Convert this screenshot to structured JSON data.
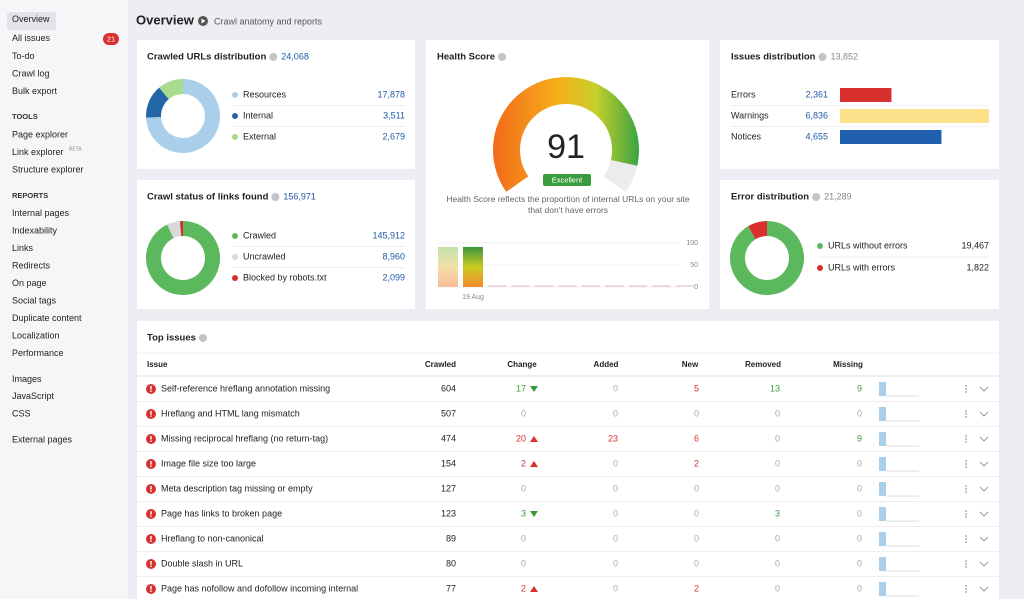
{
  "sidebar": {
    "nav": [
      "Overview",
      "All issues",
      "To-do",
      "Crawl log",
      "Bulk export"
    ],
    "all_issues_count": 21,
    "tools_heading": "TOOLS",
    "tools": [
      "Page explorer",
      "Link explorer",
      "Structure explorer"
    ],
    "beta": "BETA",
    "reports_heading": "REPORTS",
    "reports": [
      "Internal pages",
      "Indexability",
      "Links",
      "Redirects",
      "On page",
      "Social tags",
      "Duplicate content",
      "Localization",
      "Performance"
    ],
    "resources": [
      "Images",
      "JavaScript",
      "CSS"
    ],
    "external": [
      "External pages"
    ]
  },
  "header": {
    "title": "Overview",
    "subtitle": "Crawl anatomy and reports"
  },
  "crawled_urls": {
    "title": "Crawled URLs distribution",
    "total": {
      "value": 24068,
      "label": "24,068"
    },
    "items": [
      {
        "name": "Resources",
        "color": "#a9cfea",
        "value": 17878,
        "label": "17,878"
      },
      {
        "name": "Internal",
        "color": "#2366a8",
        "value": 3511,
        "label": "3,511"
      },
      {
        "name": "External",
        "color": "#a8dc8c",
        "value": 2679,
        "label": "2,679"
      }
    ]
  },
  "crawl_status": {
    "title": "Crawl status of links found",
    "total": {
      "value": 156971,
      "label": "156,971"
    },
    "items": [
      {
        "name": "Crawled",
        "color": "#5cb85c",
        "value": 145912,
        "label": "145,912"
      },
      {
        "name": "Uncrawled",
        "color": "#d9d9dc",
        "value": 8960,
        "label": "8,960"
      },
      {
        "name": "Blocked by robots.txt",
        "color": "#d8302f",
        "value": 2099,
        "label": "2,099"
      }
    ]
  },
  "health": {
    "title": "Health Score",
    "score": 91,
    "rating": "Excellent",
    "description": "Health Score reflects the proportion of internal URLs on your site that don't have errors",
    "history": {
      "ylim": [
        0,
        100
      ],
      "yticks": [
        100,
        50,
        0
      ],
      "dates": [
        null,
        "19 Aug"
      ],
      "values": [
        91,
        91
      ]
    }
  },
  "issues_distribution": {
    "title": "Issues distribution",
    "total": {
      "value": 13852,
      "label": "13,852"
    },
    "items": [
      {
        "name": "Errors",
        "color": "#d8302f",
        "value": 2361,
        "label": "2,361"
      },
      {
        "name": "Warnings",
        "color": "#fde08a",
        "value": 6836,
        "label": "6,836"
      },
      {
        "name": "Notices",
        "color": "#1f5fae",
        "value": 4655,
        "label": "4,655"
      }
    ]
  },
  "error_distribution": {
    "title": "Error distribution",
    "total": {
      "value": 21289,
      "label": "21,289"
    },
    "items": [
      {
        "name": "URLs without errors",
        "color": "#5cb85c",
        "value": 19467,
        "label": "19,467"
      },
      {
        "name": "URLs with errors",
        "color": "#d8302f",
        "value": 1822,
        "label": "1,822"
      }
    ]
  },
  "top_issues": {
    "title": "Top issues",
    "columns": [
      "Issue",
      "Crawled",
      "Change",
      "Added",
      "New",
      "Removed",
      "Missing"
    ],
    "rows": [
      {
        "issue": "Self-reference hreflang annotation missing",
        "crawled": 604,
        "change": 17,
        "trend": "down",
        "added": 0,
        "new": 5,
        "removed": 13,
        "missing": 9
      },
      {
        "issue": "Hreflang and HTML lang mismatch",
        "crawled": 507,
        "change": 0,
        "trend": null,
        "added": 0,
        "new": 0,
        "removed": 0,
        "missing": 0
      },
      {
        "issue": "Missing reciprocal hreflang (no return-tag)",
        "crawled": 474,
        "change": 20,
        "trend": "up",
        "added": 23,
        "new": 6,
        "removed": 0,
        "missing": 9
      },
      {
        "issue": "Image file size too large",
        "crawled": 154,
        "change": 2,
        "trend": "up",
        "added": 0,
        "new": 2,
        "removed": 0,
        "missing": 0
      },
      {
        "issue": "Meta description tag missing or empty",
        "crawled": 127,
        "change": 0,
        "trend": null,
        "added": 0,
        "new": 0,
        "removed": 0,
        "missing": 0
      },
      {
        "issue": "Page has links to broken page",
        "crawled": 123,
        "change": 3,
        "trend": "down",
        "added": 0,
        "new": 0,
        "removed": 3,
        "missing": 0
      },
      {
        "issue": "Hreflang to non-canonical",
        "crawled": 89,
        "change": 0,
        "trend": null,
        "added": 0,
        "new": 0,
        "removed": 0,
        "missing": 0
      },
      {
        "issue": "Double slash in URL",
        "crawled": 80,
        "change": 0,
        "trend": null,
        "added": 0,
        "new": 0,
        "removed": 0,
        "missing": 0
      },
      {
        "issue": "Page has nofollow and dofollow incoming internal",
        "crawled": 77,
        "change": 2,
        "trend": "up",
        "added": 0,
        "new": 2,
        "removed": 0,
        "missing": 0
      }
    ]
  }
}
